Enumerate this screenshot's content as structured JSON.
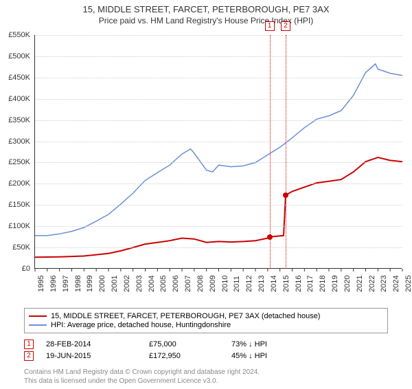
{
  "title_line1": "15, MIDDLE STREET, FARCET, PETERBOROUGH, PE7 3AX",
  "title_line2": "Price paid vs. HM Land Registry's House Price Index (HPI)",
  "chart": {
    "background_color": "#ffffff",
    "grid_color": "#d0d0d0",
    "axis_color": "#333333",
    "text_color": "#333333",
    "label_fontsize": 11,
    "title_fontsize": 13,
    "x_years": [
      1995,
      1996,
      1997,
      1998,
      1999,
      2000,
      2001,
      2002,
      2003,
      2004,
      2005,
      2006,
      2007,
      2008,
      2009,
      2010,
      2011,
      2012,
      2013,
      2014,
      2015,
      2016,
      2017,
      2018,
      2019,
      2020,
      2021,
      2022,
      2023,
      2024,
      2025
    ],
    "y_min": 0,
    "y_max": 550000,
    "y_step": 50000,
    "y_tick_labels": [
      "£0",
      "£50K",
      "£100K",
      "£150K",
      "£200K",
      "£250K",
      "£300K",
      "£350K",
      "£400K",
      "£450K",
      "£500K",
      "£550K"
    ],
    "series": [
      {
        "name": "price_paid",
        "color": "#cc0000",
        "line_width": 2,
        "data": [
          [
            1995,
            27000
          ],
          [
            1996,
            27500
          ],
          [
            1997,
            28000
          ],
          [
            1998,
            29000
          ],
          [
            1999,
            30000
          ],
          [
            2000,
            33000
          ],
          [
            2001,
            36000
          ],
          [
            2002,
            42000
          ],
          [
            2003,
            50000
          ],
          [
            2004,
            58000
          ],
          [
            2005,
            62000
          ],
          [
            2006,
            66000
          ],
          [
            2007,
            72000
          ],
          [
            2008,
            70000
          ],
          [
            2009,
            62000
          ],
          [
            2010,
            64000
          ],
          [
            2011,
            63000
          ],
          [
            2012,
            64000
          ],
          [
            2013,
            66000
          ],
          [
            2014,
            72000
          ],
          [
            2014.16,
            75000
          ],
          [
            2015.3,
            78000
          ],
          [
            2015.47,
            172950
          ],
          [
            2016,
            182000
          ],
          [
            2017,
            192000
          ],
          [
            2018,
            202000
          ],
          [
            2019,
            206000
          ],
          [
            2020,
            210000
          ],
          [
            2021,
            228000
          ],
          [
            2022,
            252000
          ],
          [
            2023,
            262000
          ],
          [
            2024,
            255000
          ],
          [
            2025,
            252000
          ]
        ]
      },
      {
        "name": "hpi",
        "color": "#6a8fd8",
        "line_width": 1.5,
        "data": [
          [
            1995,
            78000
          ],
          [
            1996,
            78000
          ],
          [
            1997,
            82000
          ],
          [
            1998,
            88000
          ],
          [
            1999,
            97000
          ],
          [
            2000,
            112000
          ],
          [
            2001,
            128000
          ],
          [
            2002,
            152000
          ],
          [
            2003,
            178000
          ],
          [
            2004,
            208000
          ],
          [
            2005,
            226000
          ],
          [
            2006,
            244000
          ],
          [
            2007,
            270000
          ],
          [
            2007.7,
            282000
          ],
          [
            2008,
            272000
          ],
          [
            2009,
            232000
          ],
          [
            2009.5,
            228000
          ],
          [
            2010,
            244000
          ],
          [
            2011,
            240000
          ],
          [
            2012,
            242000
          ],
          [
            2013,
            250000
          ],
          [
            2014,
            268000
          ],
          [
            2015,
            286000
          ],
          [
            2016,
            308000
          ],
          [
            2017,
            332000
          ],
          [
            2018,
            352000
          ],
          [
            2019,
            360000
          ],
          [
            2020,
            372000
          ],
          [
            2021,
            408000
          ],
          [
            2022,
            462000
          ],
          [
            2022.8,
            482000
          ],
          [
            2023,
            470000
          ],
          [
            2024,
            460000
          ],
          [
            2025,
            455000
          ]
        ]
      }
    ],
    "sale_markers": [
      {
        "label": "1",
        "year": 2014.16,
        "price": 75000,
        "color": "#cc0000"
      },
      {
        "label": "2",
        "year": 2015.47,
        "price": 172950,
        "color": "#cc0000"
      }
    ]
  },
  "legend": {
    "items": [
      {
        "color": "#cc0000",
        "text": "15, MIDDLE STREET, FARCET, PETERBOROUGH, PE7 3AX (detached house)"
      },
      {
        "color": "#6a8fd8",
        "text": "HPI: Average price, detached house, Huntingdonshire"
      }
    ]
  },
  "sales": [
    {
      "num": "1",
      "color": "#cc0000",
      "date": "28-FEB-2014",
      "price": "£75,000",
      "delta": "73% ↓ HPI"
    },
    {
      "num": "2",
      "color": "#cc0000",
      "date": "19-JUN-2015",
      "price": "£172,950",
      "delta": "45% ↓ HPI"
    }
  ],
  "footer_line1": "Contains HM Land Registry data © Crown copyright and database right 2024.",
  "footer_line2": "This data is licensed under the Open Government Licence v3.0."
}
